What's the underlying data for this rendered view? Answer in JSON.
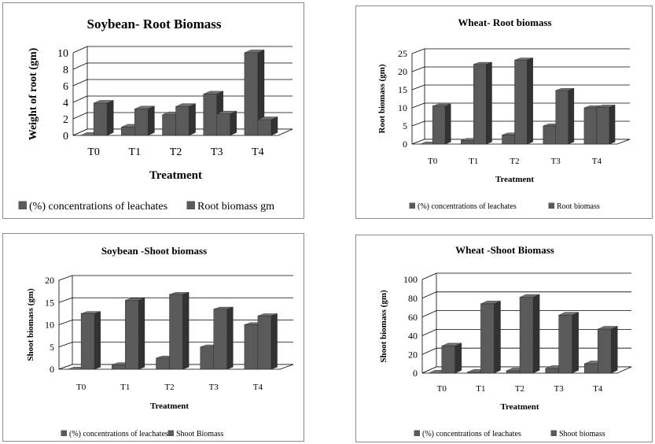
{
  "chart_data": [
    {
      "type": "bar",
      "title": "Soybean- Root Biomass",
      "xlabel": "Treatment",
      "ylabel": "Weight of root (gm)",
      "categories": [
        "T0",
        "T1",
        "T2",
        "T3",
        "T4"
      ],
      "ylim": [
        0,
        10
      ],
      "yticks": [
        "0",
        "2",
        "4",
        "6",
        "8",
        "10"
      ],
      "series": [
        {
          "name": "(%) concentrations of leachates",
          "values": [
            0,
            1,
            2.5,
            5,
            10
          ]
        },
        {
          "name": "Root biomass gm",
          "values": [
            3.9,
            3.2,
            3.5,
            2.6,
            1.9
          ]
        }
      ],
      "legend": "bottom",
      "grid": true,
      "colors": [
        "#5a5a5a",
        "#5a5a5a"
      ]
    },
    {
      "type": "bar",
      "title": "Wheat- Root biomass",
      "xlabel": "Treatment",
      "ylabel": "Root biomass (gm)",
      "categories": [
        "T0",
        "T1",
        "T2",
        "T3",
        "T4"
      ],
      "ylim": [
        0,
        25
      ],
      "yticks": [
        "0",
        "5",
        "10",
        "15",
        "20",
        "25"
      ],
      "series": [
        {
          "name": "(%) concentrations of leachates",
          "values": [
            0,
            1,
            2.5,
            5,
            10
          ]
        },
        {
          "name": "Root biomass",
          "values": [
            10.5,
            22,
            23.2,
            14.8,
            10.2
          ]
        }
      ],
      "legend": "bottom",
      "grid": true,
      "colors": [
        "#5a5a5a",
        "#5a5a5a"
      ]
    },
    {
      "type": "bar",
      "title": "Soybean -Shoot biomass",
      "xlabel": "Treatment",
      "ylabel": "Shoot biomass (gm)",
      "categories": [
        "T0",
        "T1",
        "T2",
        "T3",
        "T4"
      ],
      "ylim": [
        0,
        20
      ],
      "yticks": [
        "0",
        "5",
        "10",
        "15",
        "20"
      ],
      "series": [
        {
          "name": "(%) concentrations of leachates",
          "values": [
            0,
            1,
            2.5,
            5,
            10
          ]
        },
        {
          "name": "Shoot Biomass",
          "values": [
            12.5,
            15.5,
            16.8,
            13.5,
            12
          ]
        }
      ],
      "legend": "bottom",
      "grid": true,
      "colors": [
        "#5a5a5a",
        "#5a5a5a"
      ]
    },
    {
      "type": "bar",
      "title": "Wheat -Shoot Biomass",
      "xlabel": "Treatment",
      "ylabel": "Shoot biomass (gm)",
      "categories": [
        "T0",
        "T1",
        "T2",
        "T3",
        "T4"
      ],
      "ylim": [
        0,
        100
      ],
      "yticks": [
        "0",
        "20",
        "40",
        "60",
        "80",
        "100"
      ],
      "series": [
        {
          "name": "(%) concentrations of leachates",
          "values": [
            0,
            1,
            2.5,
            5,
            10
          ]
        },
        {
          "name": "Shoot biomass",
          "values": [
            29,
            74,
            81,
            62,
            47
          ]
        }
      ],
      "legend": "bottom",
      "grid": true,
      "colors": [
        "#5a5a5a",
        "#5a5a5a"
      ]
    }
  ]
}
